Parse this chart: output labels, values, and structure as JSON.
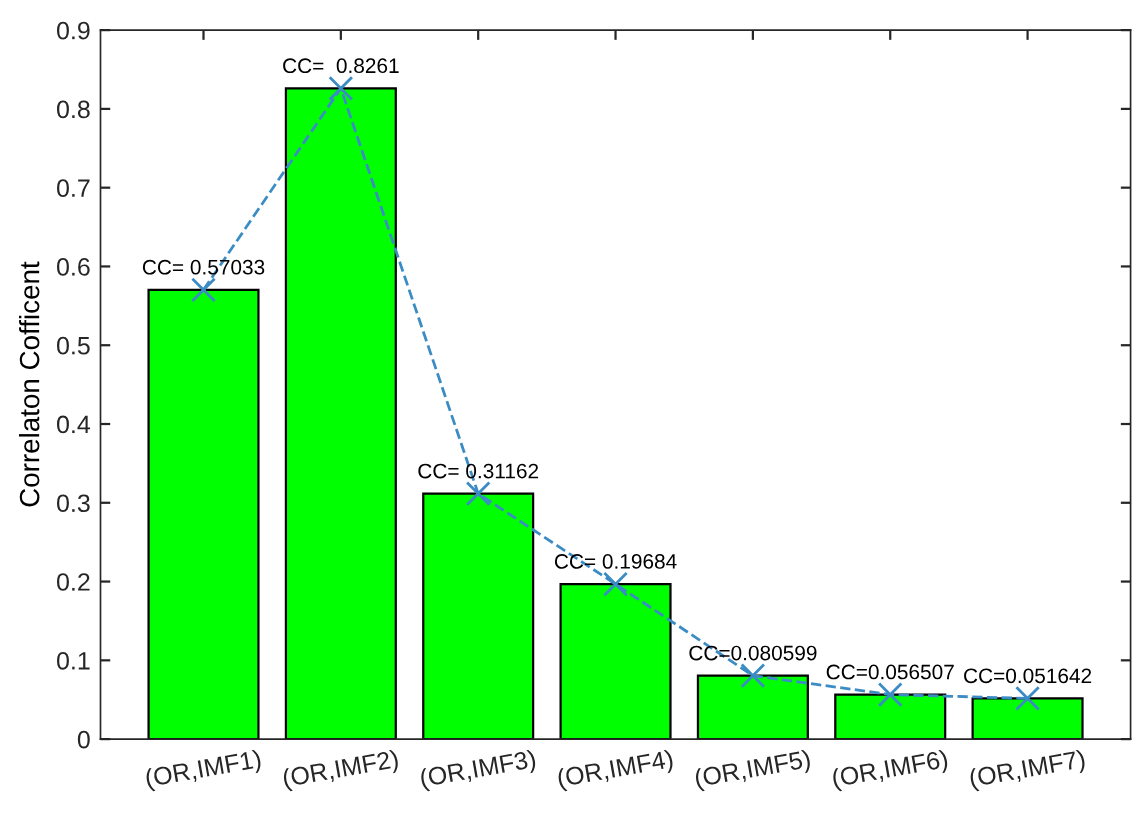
{
  "chart_data": {
    "type": "bar",
    "ylabel": "Correlaton Cofficent",
    "categories": [
      "(OR,IMF1)",
      "(OR,IMF2)",
      "(OR,IMF3)",
      "(OR,IMF4)",
      "(OR,IMF5)",
      "(OR,IMF6)",
      "(OR,IMF7)"
    ],
    "series": [
      {
        "color": "#00ff00",
        "values": [
          0.57033,
          0.8261,
          0.31162,
          0.19684,
          0.080599,
          0.056507,
          0.051642
        ]
      },
      {
        "type": "line",
        "color": "#3b8cc4",
        "marker": "cross",
        "line_style": "dashed",
        "values": [
          0.57033,
          0.8261,
          0.31162,
          0.19684,
          0.080599,
          0.056507,
          0.051642
        ],
        "value_labels": [
          "CC= 0.57033",
          "CC=  0.8261",
          "CC= 0.31162",
          "CC= 0.19684",
          "CC=0.080599",
          "CC=0.056507",
          "CC=0.051642"
        ]
      }
    ],
    "ylim": [
      0,
      0.9
    ],
    "yticks": [
      0,
      0.1,
      0.2,
      0.3,
      0.4,
      0.5,
      0.6,
      0.7,
      0.8,
      0.9
    ],
    "grid": false,
    "legend": false
  }
}
